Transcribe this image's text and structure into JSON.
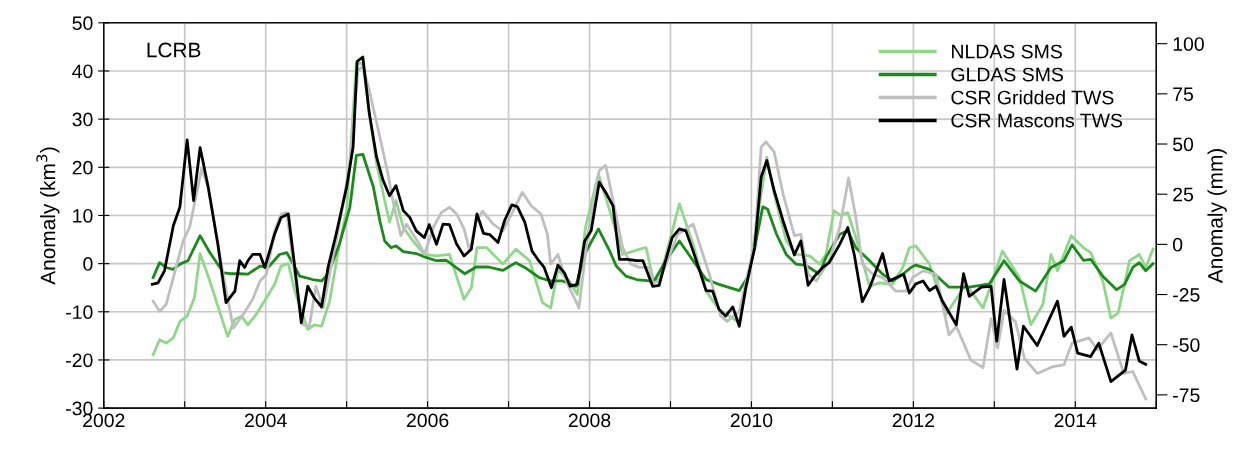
{
  "chart_data": {
    "type": "line",
    "ylabel": "Anomaly (km$^{3}$)",
    "y2label": "Anomaly (mm)",
    "annotations": [
      "LCRB"
    ],
    "xlim": [
      2002,
      2015
    ],
    "xticks": [
      2002,
      {
        "value": 2003,
        "label": null
      },
      2004,
      {
        "value": 2005,
        "label": null
      },
      2006,
      {
        "value": 2007,
        "label": null
      },
      2008,
      {
        "value": 2009,
        "label": null
      },
      2010,
      {
        "value": 2011,
        "label": null
      },
      2012,
      {
        "value": 2013,
        "label": null
      },
      2014,
      {
        "value": 2015,
        "label": null
      }
    ],
    "ylim": [
      -30,
      50
    ],
    "yticks": [
      -30,
      -20,
      -10,
      0,
      10,
      20,
      30,
      40,
      50
    ],
    "y2lim": [
      -81.6,
      110.4
    ],
    "y2ticks": [
      -75,
      -50,
      -25,
      0,
      25,
      50,
      75,
      100
    ],
    "grid": true,
    "legend": "top right",
    "line_style": "solid",
    "marker": "none",
    "series": [
      {
        "name": "NLDAS SMS",
        "color": "#8fd88a",
        "x": [
          2002.61,
          2002.69,
          2002.77,
          2002.86,
          2002.94,
          2003.03,
          2003.12,
          2003.19,
          2003.31,
          2003.43,
          2003.53,
          2003.62,
          2003.7,
          2003.78,
          2003.88,
          2004.01,
          2004.11,
          2004.19,
          2004.28,
          2004.36,
          2004.52,
          2004.6,
          2004.69,
          2004.79,
          2004.91,
          2005.0,
          2005.12,
          2005.2,
          2005.28,
          2005.37,
          2005.47,
          2005.53,
          2005.61,
          2005.7,
          2005.82,
          2005.96,
          2006.11,
          2006.27,
          2006.45,
          2006.54,
          2006.61,
          2006.73,
          2006.93,
          2007.09,
          2007.26,
          2007.42,
          2007.52,
          2007.61,
          2007.75,
          2007.85,
          2007.95,
          2008.11,
          2008.25,
          2008.41,
          2008.62,
          2008.7,
          2008.78,
          2008.86,
          2009.11,
          2009.28,
          2009.44,
          2009.6,
          2009.85,
          2009.97,
          2010.05,
          2010.19,
          2010.28,
          2010.43,
          2010.55,
          2010.72,
          2010.84,
          2010.92,
          2011.02,
          2011.1,
          2011.19,
          2011.29,
          2011.46,
          2011.58,
          2011.74,
          2011.87,
          2011.95,
          2012.03,
          2012.2,
          2012.4,
          2012.65,
          2012.86,
          2013.1,
          2013.31,
          2013.45,
          2013.6,
          2013.7,
          2013.78,
          2013.95,
          2014.1,
          2014.19,
          2014.34,
          2014.44,
          2014.53,
          2014.67,
          2014.79,
          2014.87,
          2014.96
        ],
        "values": [
          -18.9,
          -15.8,
          -16.5,
          -15.4,
          -12.0,
          -10.9,
          -7.1,
          2.1,
          -3.6,
          -9.9,
          -15.1,
          -11.6,
          -10.9,
          -12.7,
          -10.6,
          -7.1,
          -4.3,
          -0.5,
          0.0,
          -5.7,
          -13.7,
          -12.7,
          -13.0,
          -7.8,
          4.0,
          11.0,
          41.6,
          41.6,
          31.2,
          20.7,
          13.1,
          8.6,
          13.1,
          7.5,
          4.7,
          1.9,
          1.6,
          1.9,
          -7.4,
          -5.0,
          3.3,
          3.3,
          -0.1,
          3.0,
          0.6,
          -8.1,
          -9.2,
          -1.2,
          -3.6,
          -6.4,
          7.5,
          18.6,
          11.0,
          1.9,
          3.0,
          3.3,
          -2.9,
          -3.6,
          12.4,
          4.0,
          -5.7,
          -9.5,
          -12.3,
          -2.2,
          6.8,
          22.1,
          14.5,
          4.7,
          1.9,
          1.6,
          -0.1,
          1.9,
          11.0,
          10.0,
          10.6,
          5.4,
          -4.7,
          -4.0,
          -4.3,
          -0.8,
          3.3,
          3.7,
          -0.1,
          -10.6,
          -4.3,
          -9.2,
          2.6,
          -2.9,
          -12.7,
          -8.5,
          1.9,
          -1.5,
          5.8,
          3.3,
          2.3,
          -3.6,
          -11.3,
          -10.2,
          0.6,
          1.9,
          -0.8,
          3.0
        ]
      },
      {
        "name": "GLDAS SMS",
        "color": "#1a8a1a",
        "x": [
          2002.61,
          2002.69,
          2002.77,
          2002.86,
          2002.94,
          2003.04,
          2003.19,
          2003.31,
          2003.48,
          2003.56,
          2003.68,
          2003.78,
          2003.93,
          2004.03,
          2004.17,
          2004.26,
          2004.34,
          2004.42,
          2004.58,
          2004.69,
          2004.77,
          2004.91,
          2005.04,
          2005.12,
          2005.2,
          2005.33,
          2005.41,
          2005.47,
          2005.55,
          2005.61,
          2005.7,
          2005.86,
          2005.98,
          2006.11,
          2006.23,
          2006.35,
          2006.46,
          2006.6,
          2006.75,
          2006.93,
          2007.09,
          2007.2,
          2007.38,
          2007.52,
          2007.67,
          2007.83,
          2007.95,
          2008.11,
          2008.25,
          2008.33,
          2008.45,
          2008.58,
          2008.74,
          2008.8,
          2008.94,
          2009.11,
          2009.28,
          2009.44,
          2009.6,
          2009.85,
          2009.95,
          2010.04,
          2010.14,
          2010.2,
          2010.31,
          2010.43,
          2010.55,
          2010.67,
          2010.84,
          2010.92,
          2011.09,
          2011.19,
          2011.29,
          2011.46,
          2011.62,
          2011.74,
          2011.87,
          2011.97,
          2012.03,
          2012.2,
          2012.44,
          2012.69,
          2012.94,
          2013.12,
          2013.31,
          2013.51,
          2013.7,
          2013.86,
          2013.96,
          2014.1,
          2014.19,
          2014.34,
          2014.51,
          2014.61,
          2014.71,
          2014.79,
          2014.87,
          2014.96
        ],
        "values": [
          -2.9,
          0.2,
          -0.8,
          -1.2,
          -0.1,
          0.6,
          5.8,
          2.3,
          -1.9,
          -2.1,
          -2.1,
          -2.2,
          -0.5,
          -0.8,
          1.9,
          2.3,
          -0.1,
          -2.6,
          -3.3,
          -3.6,
          -2.2,
          4.0,
          11.7,
          22.5,
          22.7,
          15.9,
          8.9,
          4.7,
          3.3,
          3.7,
          2.5,
          2.1,
          1.3,
          0.6,
          0.7,
          -0.8,
          -2.1,
          -0.7,
          -0.7,
          -1.4,
          0.2,
          -0.8,
          -2.9,
          -3.6,
          -3.6,
          -4.7,
          2.3,
          7.2,
          2.6,
          -0.5,
          -2.6,
          -3.3,
          -3.6,
          -3.6,
          0.6,
          4.7,
          0.6,
          -3.3,
          -4.3,
          -5.6,
          -2.9,
          3.3,
          11.8,
          11.3,
          6.1,
          1.9,
          -0.1,
          -0.3,
          -2.2,
          1.3,
          6.1,
          6.8,
          3.3,
          0.6,
          -2.2,
          -3.6,
          -2.2,
          -0.8,
          -0.3,
          -1.2,
          -4.9,
          -4.9,
          -4.2,
          0.6,
          -3.6,
          -5.7,
          -0.8,
          0.6,
          3.9,
          0.7,
          0.9,
          -2.6,
          -5.4,
          -4.3,
          -0.8,
          0.2,
          -1.5,
          0.0
        ]
      },
      {
        "name": "CSR Gridded TWS",
        "color": "#bfbfbf",
        "x": [
          2002.61,
          2002.69,
          2002.77,
          2002.86,
          2002.98,
          2003.06,
          2003.12,
          2003.21,
          2003.29,
          2003.43,
          2003.6,
          2003.72,
          2003.84,
          2003.93,
          2004.01,
          2004.11,
          2004.19,
          2004.26,
          2004.36,
          2004.46,
          2004.54,
          2004.62,
          2004.71,
          2004.79,
          2004.91,
          2005.04,
          2005.14,
          2005.2,
          2005.28,
          2005.41,
          2005.51,
          2005.57,
          2005.67,
          2005.74,
          2005.9,
          2005.96,
          2006.07,
          2006.17,
          2006.27,
          2006.36,
          2006.45,
          2006.52,
          2006.6,
          2006.68,
          2006.81,
          2006.93,
          2007.03,
          2007.17,
          2007.28,
          2007.4,
          2007.48,
          2007.52,
          2007.61,
          2007.71,
          2007.79,
          2007.87,
          2007.98,
          2008.12,
          2008.2,
          2008.29,
          2008.41,
          2008.51,
          2008.62,
          2008.74,
          2008.78,
          2008.86,
          2009.09,
          2009.28,
          2009.48,
          2009.62,
          2009.7,
          2009.85,
          2010.04,
          2010.12,
          2010.18,
          2010.28,
          2010.39,
          2010.53,
          2010.61,
          2010.7,
          2010.8,
          2010.96,
          2011.09,
          2011.2,
          2011.29,
          2011.37,
          2011.5,
          2011.62,
          2011.78,
          2011.91,
          2011.99,
          2012.12,
          2012.28,
          2012.44,
          2012.53,
          2012.71,
          2012.86,
          2012.96,
          2013.04,
          2013.12,
          2013.26,
          2013.37,
          2013.53,
          2013.72,
          2013.86,
          2013.96,
          2014.17,
          2014.27,
          2014.44,
          2014.6,
          2014.71,
          2014.87
        ],
        "values": [
          -7.8,
          -9.9,
          -8.5,
          -2.9,
          4.7,
          7.5,
          12.4,
          19.7,
          15.9,
          1.9,
          -13.4,
          -10.6,
          -7.4,
          -3.6,
          -2.2,
          6.8,
          10.3,
          10.6,
          -2.2,
          -12.7,
          -13.0,
          -4.7,
          -9.2,
          -2.2,
          8.2,
          20.7,
          40.2,
          40.9,
          36.0,
          26.3,
          18.7,
          13.1,
          5.8,
          8.2,
          4.0,
          1.9,
          7.5,
          10.6,
          11.7,
          10.3,
          7.2,
          2.6,
          8.9,
          10.9,
          8.2,
          6.8,
          10.0,
          14.8,
          12.0,
          10.3,
          6.1,
          -0.1,
          1.9,
          -3.6,
          -6.4,
          -9.2,
          6.1,
          19.3,
          20.4,
          13.1,
          3.3,
          -0.1,
          -0.8,
          -0.8,
          -4.0,
          -3.6,
          6.1,
          8.2,
          -2.2,
          -10.9,
          -12.0,
          -9.9,
          4.0,
          24.2,
          25.3,
          23.2,
          14.5,
          5.8,
          6.1,
          -2.2,
          -3.6,
          0.6,
          7.5,
          17.8,
          9.6,
          -0.1,
          -2.2,
          -2.9,
          -5.7,
          -5.7,
          -2.9,
          -1.5,
          -2.2,
          -14.8,
          -13.0,
          -20.0,
          -21.6,
          -11.4,
          -17.5,
          -9.7,
          -12.0,
          -19.6,
          -22.8,
          -21.4,
          -21.0,
          -16.5,
          -15.4,
          -17.9,
          -14.4,
          -22.8,
          -22.4,
          -28.1
        ]
      },
      {
        "name": "CSR Mascons TWS",
        "color": "#000000",
        "x": [
          2002.6,
          2002.67,
          2002.75,
          2002.86,
          2002.94,
          2003.03,
          2003.11,
          2003.19,
          2003.29,
          2003.41,
          2003.51,
          2003.62,
          2003.68,
          2003.74,
          2003.78,
          2003.84,
          2003.93,
          2003.99,
          2004.11,
          2004.19,
          2004.28,
          2004.36,
          2004.44,
          2004.52,
          2004.6,
          2004.69,
          2004.77,
          2004.87,
          2005.0,
          2005.08,
          2005.13,
          2005.2,
          2005.28,
          2005.37,
          2005.45,
          2005.53,
          2005.61,
          2005.7,
          2005.78,
          2005.86,
          2005.96,
          2006.02,
          2006.11,
          2006.19,
          2006.27,
          2006.36,
          2006.45,
          2006.54,
          2006.61,
          2006.69,
          2006.77,
          2006.87,
          2006.95,
          2007.04,
          2007.11,
          2007.2,
          2007.29,
          2007.36,
          2007.44,
          2007.53,
          2007.61,
          2007.69,
          2007.76,
          2007.85,
          2007.94,
          2008.02,
          2008.12,
          2008.21,
          2008.29,
          2008.37,
          2008.47,
          2008.58,
          2008.66,
          2008.78,
          2008.86,
          2008.94,
          2009.02,
          2009.11,
          2009.19,
          2009.28,
          2009.36,
          2009.44,
          2009.52,
          2009.6,
          2009.68,
          2009.77,
          2009.85,
          2009.93,
          2010.04,
          2010.12,
          2010.19,
          2010.28,
          2010.39,
          2010.53,
          2010.61,
          2010.7,
          2010.78,
          2010.88,
          2010.96,
          2011.09,
          2011.19,
          2011.27,
          2011.37,
          2011.46,
          2011.54,
          2011.62,
          2011.7,
          2011.79,
          2011.88,
          2011.95,
          2012.03,
          2012.12,
          2012.2,
          2012.28,
          2012.36,
          2012.53,
          2012.62,
          2012.69,
          2012.84,
          2012.96,
          2013.03,
          2013.12,
          2013.28,
          2013.36,
          2013.53,
          2013.78,
          2013.86,
          2013.95,
          2014.03,
          2014.19,
          2014.29,
          2014.44,
          2014.62,
          2014.7,
          2014.79,
          2014.87
        ],
        "values": [
          -4.3,
          -4.0,
          -1.5,
          7.9,
          11.7,
          25.7,
          13.1,
          24.1,
          15.9,
          4.0,
          -8.1,
          -5.7,
          0.6,
          -0.8,
          0.6,
          1.9,
          1.9,
          -0.8,
          6.1,
          9.6,
          10.3,
          -0.8,
          -12.3,
          -4.7,
          -7.1,
          -9.0,
          -0.8,
          6.1,
          15.9,
          24.2,
          42.0,
          42.9,
          31.2,
          22.1,
          17.3,
          14.1,
          16.2,
          11.0,
          9.6,
          6.8,
          5.4,
          8.1,
          4.0,
          8.2,
          8.1,
          4.0,
          1.6,
          3.0,
          10.3,
          6.3,
          6.0,
          4.4,
          8.9,
          12.2,
          11.8,
          8.6,
          2.6,
          0.9,
          -0.8,
          -5.0,
          -0.3,
          -1.9,
          -4.7,
          -4.3,
          4.7,
          6.8,
          16.9,
          14.5,
          12.0,
          0.9,
          0.9,
          0.6,
          0.6,
          -4.7,
          -4.5,
          0.6,
          5.4,
          7.2,
          6.8,
          2.6,
          -1.5,
          -5.6,
          -5.7,
          -9.5,
          -10.9,
          -9.0,
          -13.0,
          -5.0,
          3.3,
          18.0,
          21.4,
          15.2,
          8.9,
          1.8,
          4.7,
          -4.5,
          -2.6,
          -0.8,
          0.2,
          4.0,
          7.5,
          1.9,
          -7.9,
          -5.0,
          -1.5,
          2.1,
          -3.6,
          -2.9,
          -2.2,
          -6.1,
          -4.2,
          -3.6,
          -5.6,
          -4.7,
          -7.8,
          -12.7,
          -2.1,
          -6.8,
          -4.9,
          -4.7,
          -16.1,
          -3.3,
          -21.9,
          -13.0,
          -17.0,
          -7.8,
          -15.1,
          -13.2,
          -18.6,
          -19.3,
          -16.5,
          -24.5,
          -22.1,
          -14.8,
          -20.2,
          -20.9
        ]
      }
    ]
  }
}
